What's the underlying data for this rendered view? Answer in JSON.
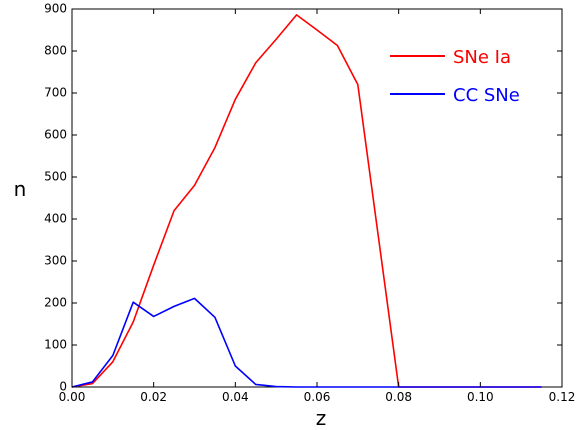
{
  "chart_data": {
    "type": "line",
    "xlabel": "z",
    "ylabel": "n",
    "xlim": [
      0.0,
      0.12
    ],
    "ylim": [
      0,
      900
    ],
    "x_ticks": [
      0.0,
      0.02,
      0.04,
      0.06,
      0.08,
      0.1,
      0.12
    ],
    "x_tick_labels": [
      "0.00",
      "0.02",
      "0.04",
      "0.06",
      "0.08",
      "0.10",
      "0.12"
    ],
    "y_ticks": [
      0,
      100,
      200,
      300,
      400,
      500,
      600,
      700,
      800,
      900
    ],
    "y_tick_labels": [
      "0",
      "100",
      "200",
      "300",
      "400",
      "500",
      "600",
      "700",
      "800",
      "900"
    ],
    "grid": false,
    "legend_position": "top-right",
    "series": [
      {
        "name": "SNe Ia",
        "color": "#ff0000",
        "x": [
          0.0,
          0.005,
          0.01,
          0.015,
          0.02,
          0.025,
          0.03,
          0.035,
          0.04,
          0.045,
          0.05,
          0.055,
          0.06,
          0.065,
          0.07,
          0.075,
          0.08,
          0.085,
          0.09,
          0.095,
          0.1,
          0.105,
          0.11,
          0.115
        ],
        "y": [
          0,
          8,
          60,
          155,
          290,
          420,
          480,
          570,
          685,
          772,
          828,
          886,
          850,
          813,
          720,
          360,
          0,
          0,
          0,
          0,
          0,
          0,
          0,
          0
        ]
      },
      {
        "name": "CC SNe",
        "color": "#0000ff",
        "x": [
          0.0,
          0.005,
          0.01,
          0.015,
          0.02,
          0.025,
          0.03,
          0.035,
          0.04,
          0.045,
          0.05,
          0.055,
          0.06,
          0.065,
          0.07,
          0.075,
          0.08,
          0.085,
          0.09,
          0.095,
          0.1,
          0.105,
          0.11,
          0.115
        ],
        "y": [
          0,
          12,
          75,
          202,
          168,
          192,
          211,
          166,
          50,
          6,
          1,
          0,
          0,
          0,
          0,
          0,
          0,
          0,
          0,
          0,
          0,
          0,
          0,
          0
        ]
      }
    ]
  }
}
